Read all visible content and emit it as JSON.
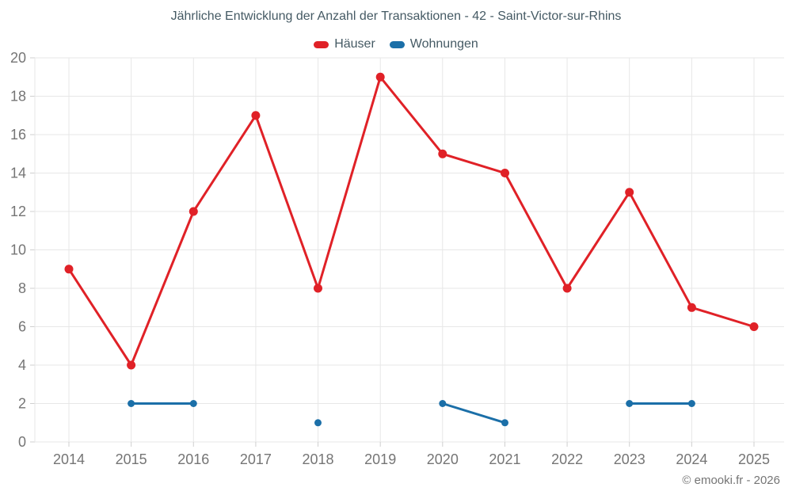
{
  "footer": {
    "text": "© emooki.fr - 2026"
  },
  "chart_data": {
    "type": "line",
    "title": "Jährliche Entwicklung der Anzahl der Transaktionen - 42 - Saint-Victor-sur-Rhins",
    "x": [
      "2014",
      "2015",
      "2016",
      "2017",
      "2018",
      "2019",
      "2020",
      "2021",
      "2022",
      "2023",
      "2024",
      "2025"
    ],
    "series": [
      {
        "name": "Häuser",
        "color": "#e02127",
        "marker_radius": 5.5,
        "line_width": 3,
        "values": [
          9,
          4,
          12,
          17,
          8,
          19,
          15,
          14,
          8,
          13,
          7,
          6
        ]
      },
      {
        "name": "Wohnungen",
        "color": "#1b6fa8",
        "marker_radius": 4.5,
        "line_width": 3,
        "values": [
          null,
          2,
          2,
          null,
          1,
          null,
          2,
          1,
          null,
          2,
          2,
          null
        ]
      }
    ],
    "xlabel": "",
    "ylabel": "",
    "ylim": [
      0,
      20
    ],
    "ytick_step": 2,
    "grid": true,
    "legend_position": "top",
    "grid_color": "#e7e7e7",
    "tick_color": "#cfcfcf",
    "axis_text_color": "#757575",
    "title_color": "#455a64"
  }
}
